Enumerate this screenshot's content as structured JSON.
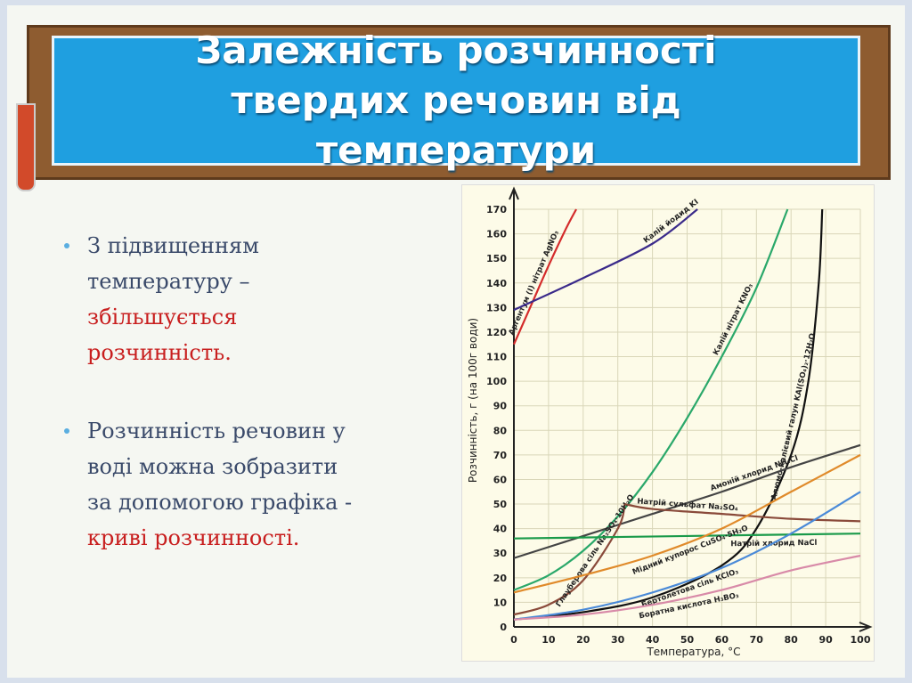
{
  "slide": {
    "title": "Залежність розчинності твердих речовин від температури",
    "bullets": [
      {
        "text": [
          "З підвищенням",
          "температуру –"
        ],
        "emphasis": [
          "збільшується",
          "розчинність."
        ]
      },
      {
        "text": [
          "Розчинність речовин у",
          "воді можна зобразити",
          "за допомогою графіка -"
        ],
        "emphasis": [
          "криві розчинності."
        ]
      }
    ]
  },
  "chart_data": {
    "type": "line",
    "xlabel": "Температура, °С",
    "ylabel": "Розчинність, г (на 100г води)",
    "xlim": [
      0,
      100
    ],
    "xticks": [
      0,
      10,
      20,
      30,
      40,
      50,
      60,
      70,
      80,
      90,
      100
    ],
    "ylim": [
      0,
      170
    ],
    "yticks": [
      0,
      10,
      20,
      30,
      40,
      50,
      60,
      70,
      80,
      90,
      100,
      110,
      120,
      130,
      140,
      150,
      160,
      170
    ],
    "grid": true,
    "series": [
      {
        "name": "Аргентум (І) нітрат AgNO₃",
        "color": "#d42b2b",
        "x": [
          0,
          5,
          10,
          15,
          18
        ],
        "values": [
          115,
          131,
          147,
          162,
          170
        ]
      },
      {
        "name": "Калій йодид KI",
        "color": "#3a2a8a",
        "x": [
          0,
          20,
          40,
          53
        ],
        "values": [
          129,
          142,
          156,
          170
        ]
      },
      {
        "name": "Калій нітрат KNO₃",
        "color": "#2aa86a",
        "x": [
          0,
          10,
          20,
          30,
          40,
          50,
          60,
          70,
          79
        ],
        "values": [
          15,
          21,
          31,
          45,
          63,
          85,
          110,
          138,
          170
        ]
      },
      {
        "name": "Алюмо-калієвий галун KAl(SO₄)₂·12H₂O",
        "color": "#111111",
        "x": [
          0,
          20,
          40,
          60,
          70,
          80,
          85,
          88,
          89
        ],
        "values": [
          3,
          6,
          12,
          25,
          40,
          70,
          100,
          140,
          170
        ]
      },
      {
        "name": "Амоній хлорид NH₄Cl",
        "color": "#444444",
        "x": [
          0,
          20,
          40,
          60,
          80,
          100
        ],
        "values": [
          28,
          37,
          46,
          55,
          65,
          74
        ]
      },
      {
        "name": "Глауберова сіль Na₂SO₄·10H₂O",
        "color": "#8a4a3a",
        "x": [
          0,
          10,
          20,
          30,
          32
        ],
        "values": [
          5,
          9,
          19,
          40,
          50
        ]
      },
      {
        "name": "Натрій сульфат Na₂SO₄",
        "color": "#8a4a3a",
        "x": [
          32,
          40,
          60,
          80,
          100
        ],
        "values": [
          50,
          48,
          46,
          44,
          43
        ]
      },
      {
        "name": "Натрій хлорид NaCl",
        "color": "#1a9a4a",
        "x": [
          0,
          50,
          100
        ],
        "values": [
          36,
          37,
          38
        ]
      },
      {
        "name": "Мідний купорос CuSO₄·5H₂O",
        "color": "#e08a2a",
        "x": [
          0,
          20,
          40,
          60,
          80,
          100
        ],
        "values": [
          14,
          21,
          29,
          40,
          55,
          70
        ]
      },
      {
        "name": "Бертолетова сіль KClO₃",
        "color": "#4a8ad8",
        "x": [
          0,
          20,
          40,
          60,
          80,
          100
        ],
        "values": [
          3,
          7,
          14,
          24,
          38,
          55
        ]
      },
      {
        "name": "Боратна кислота H₃BO₃",
        "color": "#d88aa8",
        "x": [
          0,
          20,
          40,
          60,
          80,
          100
        ],
        "values": [
          3,
          5,
          9,
          15,
          23,
          29
        ]
      }
    ]
  }
}
